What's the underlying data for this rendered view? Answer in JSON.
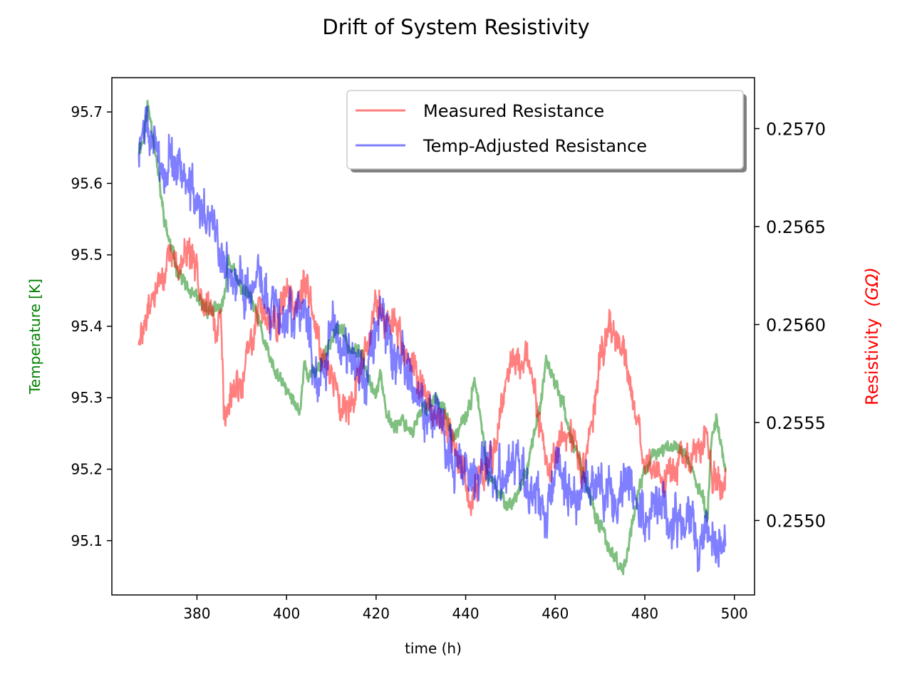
{
  "chart_data": {
    "type": "line",
    "title": "Drift of System Resistivity",
    "xlabel": "time (h)",
    "ylabel_left": "Temperature [K]",
    "ylabel_right": "Resistivity",
    "ylabel_right_unit": "(GΩ)",
    "xlim": [
      361,
      504.5
    ],
    "xticks": [
      380,
      400,
      420,
      440,
      460,
      480,
      500
    ],
    "ylim_left": [
      95.024,
      95.748
    ],
    "yticks_left": [
      95.1,
      95.2,
      95.3,
      95.4,
      95.5,
      95.6,
      95.7
    ],
    "ylim_right": [
      0.25462,
      0.25726
    ],
    "yticks_right": [
      0.255,
      0.2555,
      0.256,
      0.2565,
      0.257
    ],
    "yticks_right_labels": [
      "0.2550",
      "0.2555",
      "0.2560",
      "0.2565",
      "0.2570"
    ],
    "grid": false,
    "legend_position": "top-right",
    "colors": {
      "temperature": "#008000",
      "measured": "#ff0000",
      "adjusted": "#0000ff",
      "left_axis_label": "#008000",
      "right_axis_label": "#ff0000"
    },
    "series": [
      {
        "name": "Temperature",
        "axis": "left",
        "color": "#008000",
        "x": [
          367,
          368,
          369,
          370,
          371,
          372,
          373,
          375,
          378,
          381,
          384,
          386,
          387,
          389,
          392,
          394,
          397,
          400,
          401,
          403,
          404,
          405,
          407,
          409,
          411,
          412,
          414,
          417,
          419,
          420,
          421,
          422,
          424,
          426,
          428,
          430,
          433,
          435,
          437,
          440,
          441,
          442,
          445,
          448,
          450,
          452,
          454,
          457,
          458,
          460,
          462,
          463,
          465,
          467,
          469,
          471,
          472,
          474,
          475,
          476,
          478,
          480,
          482,
          485,
          488,
          490,
          492,
          494,
          495,
          496,
          498
        ],
        "y": [
          95.65,
          95.66,
          95.71,
          95.68,
          95.63,
          95.58,
          95.54,
          95.49,
          95.45,
          95.43,
          95.42,
          95.43,
          95.5,
          95.46,
          95.44,
          95.4,
          95.34,
          95.31,
          95.3,
          95.28,
          95.35,
          95.33,
          95.34,
          95.37,
          95.39,
          95.4,
          95.37,
          95.36,
          95.32,
          95.3,
          95.34,
          95.28,
          95.26,
          95.27,
          95.25,
          95.28,
          95.3,
          95.29,
          95.24,
          95.27,
          95.29,
          95.33,
          95.19,
          95.16,
          95.15,
          95.17,
          95.21,
          95.3,
          95.35,
          95.32,
          95.29,
          95.25,
          95.22,
          95.18,
          95.13,
          95.11,
          95.09,
          95.07,
          95.06,
          95.08,
          95.15,
          95.2,
          95.22,
          95.23,
          95.23,
          95.21,
          95.17,
          95.14,
          95.25,
          95.27,
          95.2
        ],
        "noise": 0.006
      },
      {
        "name": "Measured Resistance",
        "axis": "right",
        "color": "#ff0000",
        "x": [
          367,
          368,
          370,
          372,
          374,
          376,
          378,
          380,
          382,
          384,
          385.5,
          386,
          388,
          390,
          392,
          394,
          396,
          398,
          400,
          402,
          404,
          406,
          408,
          410,
          412,
          414,
          416,
          418,
          420,
          422,
          424,
          426,
          428,
          430,
          432,
          434,
          436,
          438,
          440,
          441,
          443,
          446,
          448,
          450,
          452,
          454,
          456,
          458,
          460,
          462,
          464,
          466,
          468,
          470,
          472,
          474,
          476,
          478,
          480,
          482,
          484,
          486,
          488,
          490,
          492,
          494,
          495,
          496,
          498
        ],
        "y": [
          0.25588,
          0.25598,
          0.25612,
          0.25625,
          0.25632,
          0.25631,
          0.25637,
          0.25625,
          0.25613,
          0.25599,
          0.256,
          0.2555,
          0.25565,
          0.2557,
          0.2559,
          0.2561,
          0.25605,
          0.256,
          0.2562,
          0.2561,
          0.2562,
          0.25605,
          0.25585,
          0.25575,
          0.2556,
          0.2556,
          0.25575,
          0.2559,
          0.2561,
          0.256,
          0.25605,
          0.25585,
          0.25578,
          0.2557,
          0.2556,
          0.2555,
          0.25545,
          0.25535,
          0.25525,
          0.25505,
          0.25525,
          0.2553,
          0.2556,
          0.2558,
          0.2558,
          0.25585,
          0.2556,
          0.25525,
          0.2553,
          0.25545,
          0.2554,
          0.25525,
          0.25545,
          0.2558,
          0.256,
          0.2559,
          0.2558,
          0.2555,
          0.2553,
          0.2553,
          0.2552,
          0.25525,
          0.2553,
          0.2553,
          0.25535,
          0.25545,
          0.25525,
          0.2552,
          0.2552
        ],
        "noise": 5e-05
      },
      {
        "name": "Temp-Adjusted Resistance",
        "axis": "right",
        "color": "#0000ff",
        "x": [
          367,
          368,
          370,
          372,
          374,
          376,
          378,
          380,
          382,
          384,
          386,
          388,
          390,
          392,
          394,
          396,
          398,
          400,
          402,
          404,
          406,
          408,
          410,
          412,
          414,
          416,
          418,
          420,
          422,
          424,
          426,
          428,
          430,
          432,
          434,
          436,
          438,
          440,
          442,
          444,
          446,
          448,
          450,
          452,
          454,
          456,
          458,
          460,
          462,
          464,
          466,
          468,
          470,
          472,
          474,
          476,
          478,
          480,
          482,
          484,
          486,
          488,
          490,
          492,
          494,
          496,
          498
        ],
        "y": [
          0.2569,
          0.257,
          0.25695,
          0.2568,
          0.25685,
          0.2568,
          0.2567,
          0.2566,
          0.25655,
          0.2565,
          0.2563,
          0.25625,
          0.2562,
          0.2562,
          0.2562,
          0.2561,
          0.2561,
          0.256,
          0.2561,
          0.2561,
          0.2558,
          0.2557,
          0.256,
          0.2559,
          0.2559,
          0.2558,
          0.2557,
          0.25605,
          0.256,
          0.2558,
          0.2558,
          0.2557,
          0.2556,
          0.2555,
          0.2555,
          0.2554,
          0.2553,
          0.2553,
          0.2552,
          0.2553,
          0.25525,
          0.2552,
          0.2553,
          0.2553,
          0.2552,
          0.2551,
          0.255,
          0.2553,
          0.2552,
          0.2551,
          0.2552,
          0.2551,
          0.2552,
          0.2551,
          0.2551,
          0.2552,
          0.2551,
          0.255,
          0.255,
          0.2551,
          0.255,
          0.255,
          0.255,
          0.2549,
          0.255,
          0.2549,
          0.2549
        ],
        "noise": 7e-05
      }
    ]
  }
}
